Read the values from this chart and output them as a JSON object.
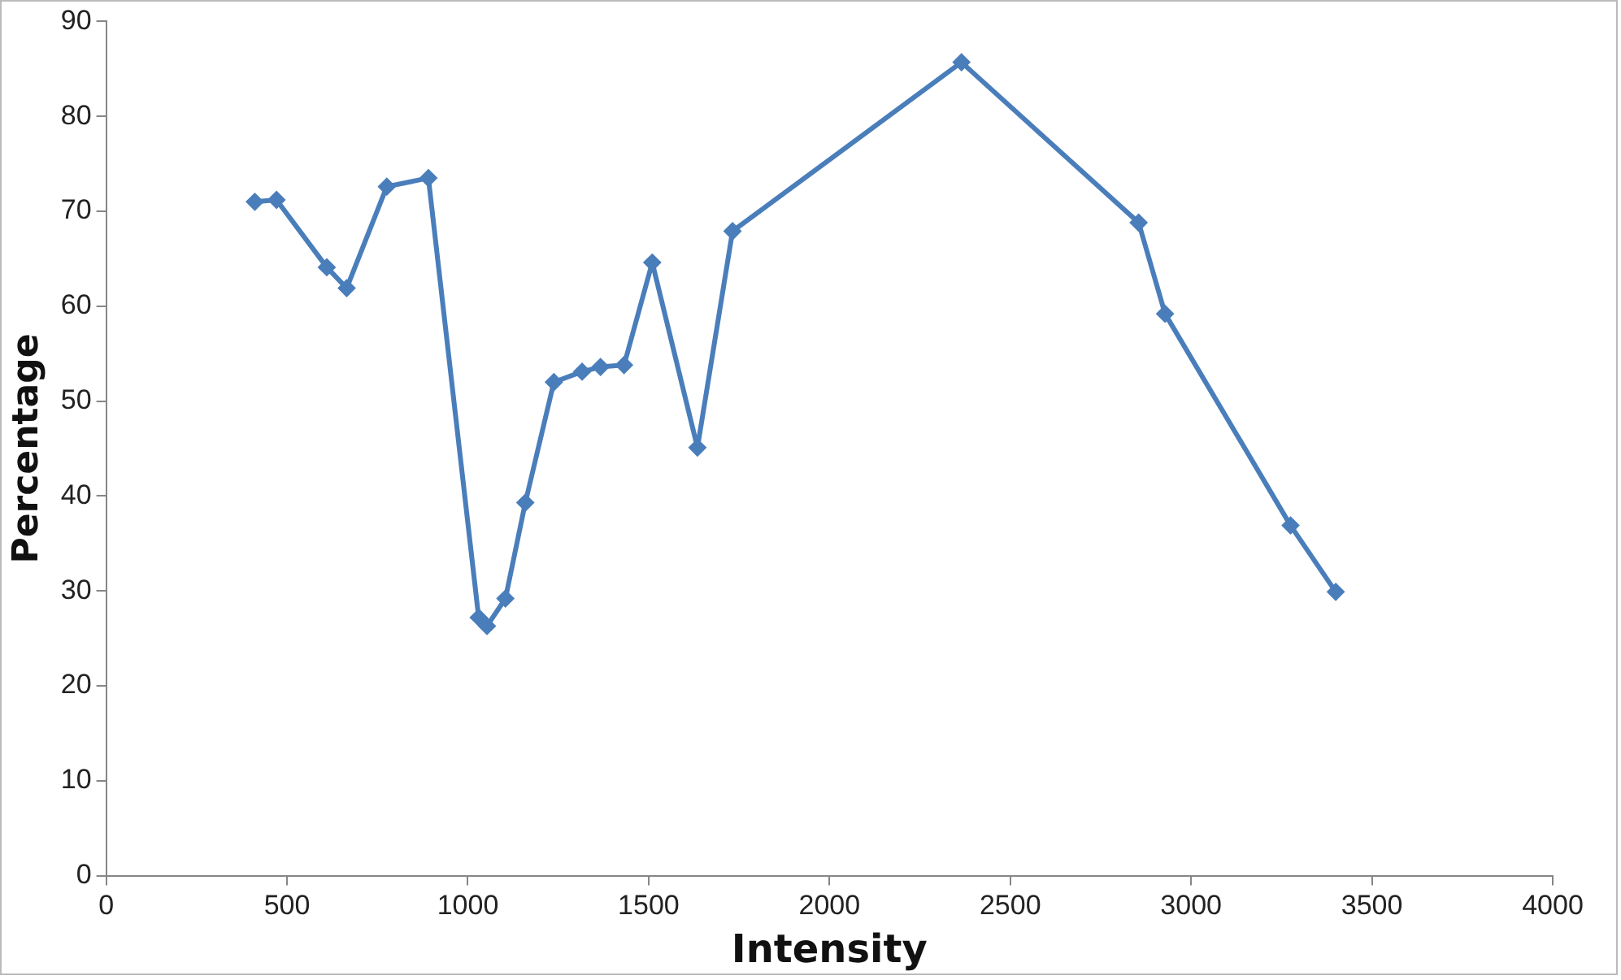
{
  "chart_data": {
    "type": "line",
    "xlabel": "Intensity",
    "ylabel": "Percentage",
    "xlim": [
      0,
      4000
    ],
    "xticks": [
      0,
      500,
      1000,
      1500,
      2000,
      2500,
      3000,
      3500,
      4000
    ],
    "ylim": [
      0,
      90
    ],
    "yticks": [
      0,
      10,
      20,
      30,
      40,
      50,
      60,
      70,
      80,
      90
    ],
    "grid": false,
    "legend": false,
    "marker": "diamond",
    "line_style": "solid",
    "series": [
      {
        "color": "#4a7ebb",
        "x": [
          411,
          471,
          610,
          665,
          776,
          891,
          1030,
          1053,
          1104,
          1159,
          1238,
          1316,
          1367,
          1432,
          1510,
          1635,
          1732,
          2365,
          2855,
          2928,
          3275,
          3400
        ],
        "values": [
          71.0,
          71.2,
          64.1,
          61.9,
          72.6,
          73.5,
          27.2,
          26.3,
          29.2,
          39.3,
          52.0,
          53.1,
          53.6,
          53.8,
          64.6,
          45.1,
          67.9,
          85.7,
          68.8,
          59.2,
          36.9,
          29.9
        ]
      }
    ]
  }
}
